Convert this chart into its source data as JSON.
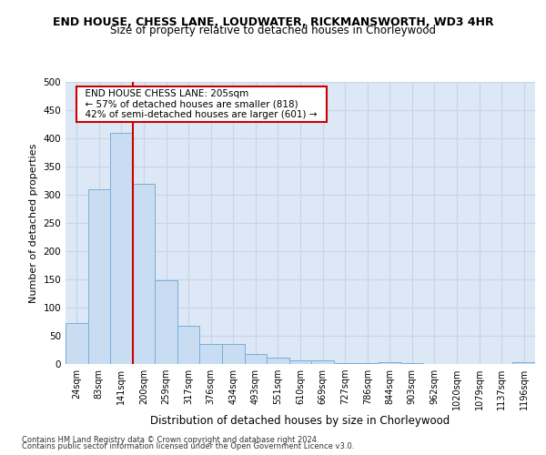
{
  "title": "END HOUSE, CHESS LANE, LOUDWATER, RICKMANSWORTH, WD3 4HR",
  "subtitle": "Size of property relative to detached houses in Chorleywood",
  "xlabel": "Distribution of detached houses by size in Chorleywood",
  "ylabel": "Number of detached properties",
  "categories": [
    "24sqm",
    "83sqm",
    "141sqm",
    "200sqm",
    "259sqm",
    "317sqm",
    "376sqm",
    "434sqm",
    "493sqm",
    "551sqm",
    "610sqm",
    "669sqm",
    "727sqm",
    "786sqm",
    "844sqm",
    "903sqm",
    "962sqm",
    "1020sqm",
    "1079sqm",
    "1137sqm",
    "1196sqm"
  ],
  "values": [
    72,
    310,
    410,
    320,
    148,
    68,
    35,
    35,
    18,
    11,
    6,
    6,
    1,
    1,
    3,
    1,
    0,
    0,
    0,
    0,
    3
  ],
  "bar_color": "#c9ddf2",
  "bar_edge_color": "#7aaed6",
  "marker_line_color": "#cc0000",
  "annotation_line1": "END HOUSE CHESS LANE: 205sqm",
  "annotation_line2": "← 57% of detached houses are smaller (818)",
  "annotation_line3": "42% of semi-detached houses are larger (601) →",
  "annotation_box_color": "#ffffff",
  "annotation_box_edge": "#cc0000",
  "grid_color": "#c8d4e8",
  "background_color": "#dce8f5",
  "ylim": [
    0,
    500
  ],
  "yticks": [
    0,
    50,
    100,
    150,
    200,
    250,
    300,
    350,
    400,
    450,
    500
  ],
  "footer_line1": "Contains HM Land Registry data © Crown copyright and database right 2024.",
  "footer_line2": "Contains public sector information licensed under the Open Government Licence v3.0."
}
